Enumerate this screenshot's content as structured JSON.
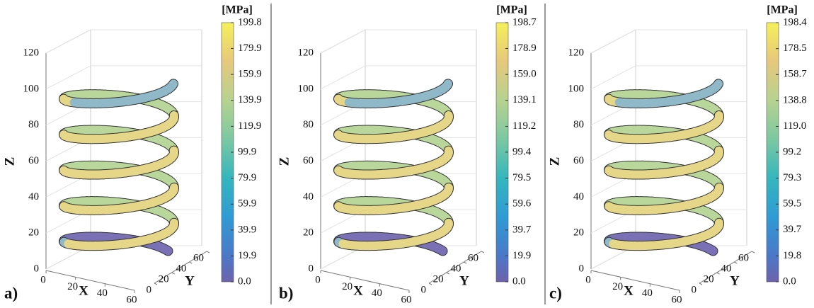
{
  "chart_data": [
    {
      "type": "helix3d",
      "panel_label": "a)",
      "xlabel": "X",
      "ylabel": "Y",
      "zlabel": "Z",
      "xlim": [
        0,
        60
      ],
      "xticks": [
        0,
        20,
        40,
        60
      ],
      "ylim": [
        0,
        60
      ],
      "yticks": [
        0,
        20,
        40,
        60
      ],
      "zlim": [
        0,
        120
      ],
      "zticks": [
        0,
        20,
        40,
        60,
        80,
        100,
        120
      ],
      "colorbar_label": "[MPa]",
      "clim": [
        0,
        199.8
      ],
      "cticks": [
        {
          "value": 0,
          "label": "0.0"
        },
        19.9,
        39.9,
        59.9,
        79.9,
        99.9,
        119.9,
        139.9,
        159.9,
        179.9,
        199.8
      ]
    },
    {
      "type": "helix3d",
      "panel_label": "b)",
      "xlabel": "X",
      "ylabel": "Y",
      "zlabel": "Z",
      "xlim": [
        0,
        60
      ],
      "xticks": [
        0,
        20,
        40,
        60
      ],
      "ylim": [
        0,
        60
      ],
      "yticks": [
        0,
        20,
        40,
        60
      ],
      "zlim": [
        0,
        120
      ],
      "zticks": [
        0,
        20,
        40,
        60,
        80,
        100,
        120
      ],
      "colorbar_label": "[MPa]",
      "clim": [
        0,
        198.7
      ],
      "cticks": [
        {
          "value": 0,
          "label": "0.0"
        },
        19.9,
        39.7,
        59.6,
        79.5,
        99.4,
        119.2,
        139.1,
        {
          "value": 159,
          "label": "159.0"
        },
        178.9,
        198.7
      ]
    },
    {
      "type": "helix3d",
      "panel_label": "c)",
      "xlabel": "X",
      "ylabel": "Y",
      "zlabel": "Z",
      "xlim": [
        0,
        60
      ],
      "xticks": [
        0,
        20,
        40,
        60
      ],
      "ylim": [
        0,
        60
      ],
      "yticks": [
        0,
        20,
        40,
        60
      ],
      "zlim": [
        0,
        120
      ],
      "zticks": [
        0,
        20,
        40,
        60,
        80,
        100,
        120
      ],
      "colorbar_label": "[MPa]",
      "clim": [
        0,
        198.4
      ],
      "cticks": [
        {
          "value": 0,
          "label": "0.0"
        },
        19.8,
        39.7,
        59.5,
        79.3,
        99.2,
        {
          "value": 119,
          "label": "119.0"
        },
        138.8,
        158.7,
        178.5,
        198.4
      ]
    }
  ]
}
